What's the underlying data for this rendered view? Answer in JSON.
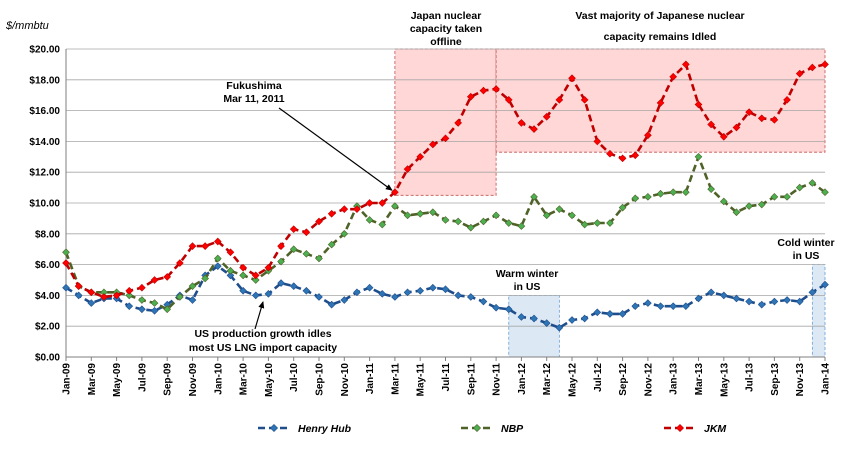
{
  "chart_data": {
    "type": "line",
    "ylabel": "$/mmbtu",
    "ylim": [
      0,
      20
    ],
    "yticks": [
      "$0.00",
      "$2.00",
      "$4.00",
      "$6.00",
      "$8.00",
      "$10.00",
      "$12.00",
      "$14.00",
      "$16.00",
      "$18.00",
      "$20.00"
    ],
    "xtick_labels": [
      "Jan-09",
      "Mar-09",
      "May-09",
      "Jul-09",
      "Sep-09",
      "Nov-09",
      "Jan-10",
      "Mar-10",
      "May-10",
      "Jul-10",
      "Sep-10",
      "Nov-10",
      "Jan-11",
      "Mar-11",
      "May-11",
      "Jul-11",
      "Sep-11",
      "Nov-11",
      "Jan-12",
      "Mar-12",
      "May-12",
      "Jul-12",
      "Sep-12",
      "Nov-12",
      "Jan-13",
      "Mar-13",
      "May-13",
      "Jul-13",
      "Sep-13",
      "Nov-13",
      "Jan-14"
    ],
    "x_months": [
      "Jan-09",
      "Feb-09",
      "Mar-09",
      "Apr-09",
      "May-09",
      "Jun-09",
      "Jul-09",
      "Aug-09",
      "Sep-09",
      "Oct-09",
      "Nov-09",
      "Dec-09",
      "Jan-10",
      "Feb-10",
      "Mar-10",
      "Apr-10",
      "May-10",
      "Jun-10",
      "Jul-10",
      "Aug-10",
      "Sep-10",
      "Oct-10",
      "Nov-10",
      "Dec-10",
      "Jan-11",
      "Feb-11",
      "Mar-11",
      "Apr-11",
      "May-11",
      "Jun-11",
      "Jul-11",
      "Aug-11",
      "Sep-11",
      "Oct-11",
      "Nov-11",
      "Dec-11",
      "Jan-12",
      "Feb-12",
      "Mar-12",
      "Apr-12",
      "May-12",
      "Jun-12",
      "Jul-12",
      "Aug-12",
      "Sep-12",
      "Oct-12",
      "Nov-12",
      "Dec-12",
      "Jan-13",
      "Feb-13",
      "Mar-13",
      "Apr-13",
      "May-13",
      "Jun-13",
      "Jul-13",
      "Aug-13",
      "Sep-13",
      "Oct-13",
      "Nov-13",
      "Dec-13",
      "Jan-14"
    ],
    "series": [
      {
        "name": "Henry Hub",
        "color": "#1f4e8c",
        "marker_color": "#2e75b6",
        "values": [
          4.5,
          4.0,
          3.5,
          3.8,
          3.8,
          3.3,
          3.1,
          3.0,
          3.4,
          4.0,
          3.7,
          5.3,
          5.9,
          5.3,
          4.3,
          4.0,
          4.1,
          4.8,
          4.6,
          4.3,
          3.9,
          3.4,
          3.7,
          4.2,
          4.5,
          4.1,
          3.9,
          4.2,
          4.3,
          4.5,
          4.4,
          4.0,
          3.9,
          3.6,
          3.2,
          3.1,
          2.6,
          2.5,
          2.2,
          1.9,
          2.4,
          2.5,
          2.9,
          2.8,
          2.8,
          3.3,
          3.5,
          3.3,
          3.3,
          3.3,
          3.8,
          4.2,
          4.0,
          3.8,
          3.6,
          3.4,
          3.6,
          3.7,
          3.6,
          4.2,
          4.7
        ]
      },
      {
        "name": "NBP",
        "color": "#4f6228",
        "marker_color": "#4caf50",
        "values": [
          6.8,
          4.6,
          4.2,
          4.2,
          4.2,
          4.0,
          3.7,
          3.5,
          3.1,
          3.9,
          4.6,
          5.1,
          6.4,
          5.6,
          5.3,
          5.0,
          5.6,
          6.2,
          7.0,
          6.7,
          6.4,
          7.3,
          8.0,
          9.8,
          8.9,
          8.6,
          9.8,
          9.2,
          9.3,
          9.4,
          8.9,
          8.8,
          8.4,
          8.8,
          9.2,
          8.7,
          8.5,
          10.4,
          9.2,
          9.6,
          9.2,
          8.6,
          8.7,
          8.7,
          9.7,
          10.3,
          10.4,
          10.6,
          10.7,
          10.7,
          13.0,
          10.9,
          10.1,
          9.4,
          9.8,
          9.9,
          10.4,
          10.4,
          11.0,
          11.3,
          10.7
        ]
      },
      {
        "name": "JKM",
        "color": "#c00000",
        "marker_color": "#ff0000",
        "values": [
          6.1,
          4.6,
          4.2,
          3.9,
          4.0,
          4.3,
          4.5,
          5.0,
          5.2,
          6.1,
          7.2,
          7.2,
          7.5,
          6.8,
          5.8,
          5.3,
          5.8,
          7.2,
          8.3,
          8.1,
          8.8,
          9.3,
          9.6,
          9.6,
          10.0,
          10.0,
          10.7,
          12.2,
          13.0,
          13.8,
          14.2,
          15.2,
          16.9,
          17.3,
          17.4,
          16.7,
          15.2,
          14.8,
          15.6,
          16.7,
          18.1,
          16.7,
          14.0,
          13.2,
          12.9,
          13.1,
          14.4,
          16.5,
          18.2,
          19.0,
          16.4,
          15.1,
          14.3,
          14.9,
          15.9,
          15.5,
          15.4,
          16.7,
          18.4,
          18.8,
          19.0
        ]
      }
    ],
    "annotations": [
      {
        "text": "Japan nuclear capacity taken offline",
        "lines": [
          "Japan nuclear",
          "capacity  taken",
          "offline"
        ]
      },
      {
        "text": "Vast majority of Japanese nuclear capacity remains Idled",
        "lines": [
          "Vast majority of Japanese nuclear",
          "capacity  remains Idled"
        ]
      },
      {
        "text": "Fukushima Mar 11, 2011",
        "lines": [
          "Fukushima",
          "Mar 11, 2011"
        ]
      },
      {
        "text": "Warm winter in US",
        "lines": [
          "Warm winter",
          "in US"
        ]
      },
      {
        "text": "Cold winter in US",
        "lines": [
          "Cold winter",
          "in US"
        ]
      },
      {
        "text": "US production growth idles most US LNG import capacity",
        "lines": [
          "US production growth idles",
          "most US LNG import capacity"
        ]
      }
    ],
    "shaded_regions": [
      {
        "label": "Japan nuclear capacity taken offline",
        "x_from": "Mar-11",
        "x_to": "Nov-11",
        "y_from": 10.5,
        "y_to": 20,
        "color": "#ffd7d7",
        "border": "#c0504d"
      },
      {
        "label": "Vast majority of Japanese nuclear capacity remains Idled",
        "x_from": "Nov-11",
        "x_to": "Jan-14",
        "y_from": 13.3,
        "y_to": 20,
        "color": "#ffd7d7",
        "border": "#c0504d"
      },
      {
        "label": "Warm winter in US",
        "x_from": "Dec-11",
        "x_to": "Apr-12",
        "y_from": 0,
        "y_to": 4.0,
        "color": "#dce9f5",
        "border": "#6a9fd4"
      },
      {
        "label": "Cold winter in US",
        "x_from": "Dec-13",
        "x_to": "Jan-14",
        "y_from": 0,
        "y_to": 6.0,
        "color": "#dce9f5",
        "border": "#6a9fd4"
      }
    ],
    "legend_position": "bottom",
    "grid": true
  }
}
